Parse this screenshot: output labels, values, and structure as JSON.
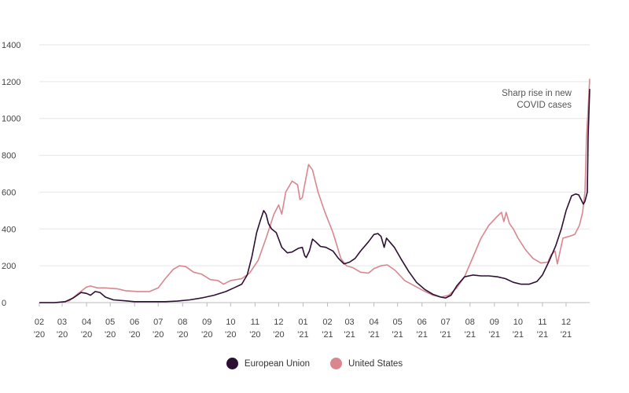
{
  "chart_data": {
    "type": "line",
    "title": "",
    "xlabel": "",
    "ylabel": "",
    "ylim": [
      0,
      1400
    ],
    "yticks": [
      0,
      200,
      400,
      600,
      800,
      1000,
      1200,
      1400
    ],
    "grid": true,
    "legend_position": "bottom-center",
    "x_range": [
      "2020-02-01",
      "2021-12-31"
    ],
    "x_tick_labels": [
      {
        "month": "02",
        "year": "'20"
      },
      {
        "month": "03",
        "year": "'20"
      },
      {
        "month": "04",
        "year": "'20"
      },
      {
        "month": "05",
        "year": "'20"
      },
      {
        "month": "06",
        "year": "'20"
      },
      {
        "month": "07",
        "year": "'20"
      },
      {
        "month": "08",
        "year": "'20"
      },
      {
        "month": "09",
        "year": "'20"
      },
      {
        "month": "10",
        "year": "'20"
      },
      {
        "month": "11",
        "year": "'20"
      },
      {
        "month": "12",
        "year": "'20"
      },
      {
        "month": "01",
        "year": "'21"
      },
      {
        "month": "02",
        "year": "'21"
      },
      {
        "month": "03",
        "year": "'21"
      },
      {
        "month": "04",
        "year": "'21"
      },
      {
        "month": "05",
        "year": "'21"
      },
      {
        "month": "06",
        "year": "'21"
      },
      {
        "month": "07",
        "year": "'21"
      },
      {
        "month": "08",
        "year": "'21"
      },
      {
        "month": "09",
        "year": "'21"
      },
      {
        "month": "10",
        "year": "'21"
      },
      {
        "month": "11",
        "year": "'21"
      },
      {
        "month": "12",
        "year": "'21"
      }
    ],
    "annotation": {
      "lines": [
        "Sharp rise in new",
        "COVID cases"
      ]
    },
    "series": [
      {
        "name": "European Union",
        "color": "#2d0f33",
        "points": [
          [
            "2020-02-01",
            0
          ],
          [
            "2020-02-20",
            0
          ],
          [
            "2020-03-05",
            5
          ],
          [
            "2020-03-15",
            25
          ],
          [
            "2020-03-25",
            55
          ],
          [
            "2020-04-01",
            50
          ],
          [
            "2020-04-06",
            40
          ],
          [
            "2020-04-12",
            60
          ],
          [
            "2020-04-18",
            55
          ],
          [
            "2020-04-25",
            30
          ],
          [
            "2020-05-05",
            15
          ],
          [
            "2020-05-20",
            10
          ],
          [
            "2020-06-01",
            5
          ],
          [
            "2020-06-20",
            5
          ],
          [
            "2020-07-10",
            5
          ],
          [
            "2020-07-25",
            8
          ],
          [
            "2020-08-10",
            15
          ],
          [
            "2020-08-25",
            25
          ],
          [
            "2020-09-10",
            40
          ],
          [
            "2020-09-25",
            60
          ],
          [
            "2020-10-05",
            80
          ],
          [
            "2020-10-15",
            100
          ],
          [
            "2020-10-22",
            150
          ],
          [
            "2020-10-28",
            250
          ],
          [
            "2020-11-03",
            380
          ],
          [
            "2020-11-08",
            450
          ],
          [
            "2020-11-12",
            500
          ],
          [
            "2020-11-15",
            480
          ],
          [
            "2020-11-18",
            430
          ],
          [
            "2020-11-22",
            400
          ],
          [
            "2020-11-28",
            380
          ],
          [
            "2020-12-05",
            300
          ],
          [
            "2020-12-12",
            270
          ],
          [
            "2020-12-18",
            275
          ],
          [
            "2020-12-26",
            295
          ],
          [
            "2020-12-31",
            300
          ],
          [
            "2021-01-03",
            255
          ],
          [
            "2021-01-05",
            245
          ],
          [
            "2021-01-09",
            280
          ],
          [
            "2021-01-13",
            345
          ],
          [
            "2021-01-17",
            330
          ],
          [
            "2021-01-23",
            305
          ],
          [
            "2021-01-30",
            300
          ],
          [
            "2021-02-08",
            280
          ],
          [
            "2021-02-15",
            240
          ],
          [
            "2021-02-22",
            210
          ],
          [
            "2021-03-01",
            220
          ],
          [
            "2021-03-08",
            240
          ],
          [
            "2021-03-15",
            280
          ],
          [
            "2021-03-25",
            330
          ],
          [
            "2021-04-01",
            370
          ],
          [
            "2021-04-06",
            375
          ],
          [
            "2021-04-10",
            360
          ],
          [
            "2021-04-14",
            300
          ],
          [
            "2021-04-17",
            350
          ],
          [
            "2021-04-21",
            330
          ],
          [
            "2021-04-27",
            300
          ],
          [
            "2021-05-05",
            240
          ],
          [
            "2021-05-15",
            170
          ],
          [
            "2021-05-25",
            110
          ],
          [
            "2021-06-05",
            70
          ],
          [
            "2021-06-15",
            45
          ],
          [
            "2021-06-25",
            30
          ],
          [
            "2021-07-01",
            25
          ],
          [
            "2021-07-08",
            40
          ],
          [
            "2021-07-15",
            90
          ],
          [
            "2021-07-25",
            140
          ],
          [
            "2021-08-05",
            150
          ],
          [
            "2021-08-15",
            145
          ],
          [
            "2021-08-25",
            145
          ],
          [
            "2021-09-05",
            140
          ],
          [
            "2021-09-15",
            130
          ],
          [
            "2021-09-25",
            110
          ],
          [
            "2021-10-05",
            100
          ],
          [
            "2021-10-15",
            100
          ],
          [
            "2021-10-25",
            115
          ],
          [
            "2021-11-01",
            150
          ],
          [
            "2021-11-10",
            230
          ],
          [
            "2021-11-18",
            310
          ],
          [
            "2021-11-25",
            400
          ],
          [
            "2021-12-01",
            500
          ],
          [
            "2021-12-08",
            580
          ],
          [
            "2021-12-13",
            590
          ],
          [
            "2021-12-17",
            585
          ],
          [
            "2021-12-20",
            560
          ],
          [
            "2021-12-23",
            535
          ],
          [
            "2021-12-25",
            550
          ],
          [
            "2021-12-28",
            600
          ],
          [
            "2021-12-29",
            900
          ],
          [
            "2021-12-31",
            1160
          ]
        ]
      },
      {
        "name": "United States",
        "color": "#d9868f",
        "points": [
          [
            "2020-02-01",
            0
          ],
          [
            "2020-02-25",
            0
          ],
          [
            "2020-03-10",
            10
          ],
          [
            "2020-03-20",
            45
          ],
          [
            "2020-04-01",
            85
          ],
          [
            "2020-04-06",
            90
          ],
          [
            "2020-04-15",
            80
          ],
          [
            "2020-04-25",
            80
          ],
          [
            "2020-05-10",
            75
          ],
          [
            "2020-05-20",
            65
          ],
          [
            "2020-06-05",
            60
          ],
          [
            "2020-06-20",
            60
          ],
          [
            "2020-07-01",
            80
          ],
          [
            "2020-07-10",
            130
          ],
          [
            "2020-07-20",
            180
          ],
          [
            "2020-07-28",
            200
          ],
          [
            "2020-08-05",
            195
          ],
          [
            "2020-08-15",
            165
          ],
          [
            "2020-08-25",
            155
          ],
          [
            "2020-09-05",
            125
          ],
          [
            "2020-09-15",
            120
          ],
          [
            "2020-09-22",
            100
          ],
          [
            "2020-10-01",
            120
          ],
          [
            "2020-10-15",
            130
          ],
          [
            "2020-10-25",
            160
          ],
          [
            "2020-11-05",
            230
          ],
          [
            "2020-11-15",
            350
          ],
          [
            "2020-11-25",
            480
          ],
          [
            "2020-12-01",
            530
          ],
          [
            "2020-12-05",
            480
          ],
          [
            "2020-12-10",
            600
          ],
          [
            "2020-12-18",
            660
          ],
          [
            "2020-12-25",
            640
          ],
          [
            "2020-12-28",
            560
          ],
          [
            "2020-12-31",
            570
          ],
          [
            "2021-01-03",
            640
          ],
          [
            "2021-01-08",
            750
          ],
          [
            "2021-01-13",
            720
          ],
          [
            "2021-01-20",
            600
          ],
          [
            "2021-01-28",
            500
          ],
          [
            "2021-02-08",
            380
          ],
          [
            "2021-02-18",
            240
          ],
          [
            "2021-02-25",
            200
          ],
          [
            "2021-03-05",
            190
          ],
          [
            "2021-03-15",
            165
          ],
          [
            "2021-03-25",
            160
          ],
          [
            "2021-04-01",
            185
          ],
          [
            "2021-04-10",
            200
          ],
          [
            "2021-04-18",
            205
          ],
          [
            "2021-04-28",
            175
          ],
          [
            "2021-05-10",
            120
          ],
          [
            "2021-05-25",
            85
          ],
          [
            "2021-06-05",
            60
          ],
          [
            "2021-06-15",
            40
          ],
          [
            "2021-06-25",
            30
          ],
          [
            "2021-07-05",
            40
          ],
          [
            "2021-07-15",
            80
          ],
          [
            "2021-07-25",
            140
          ],
          [
            "2021-08-05",
            250
          ],
          [
            "2021-08-15",
            350
          ],
          [
            "2021-08-25",
            420
          ],
          [
            "2021-09-05",
            470
          ],
          [
            "2021-09-10",
            490
          ],
          [
            "2021-09-13",
            440
          ],
          [
            "2021-09-16",
            490
          ],
          [
            "2021-09-20",
            430
          ],
          [
            "2021-09-25",
            400
          ],
          [
            "2021-10-01",
            350
          ],
          [
            "2021-10-10",
            290
          ],
          [
            "2021-10-20",
            240
          ],
          [
            "2021-10-30",
            215
          ],
          [
            "2021-11-08",
            220
          ],
          [
            "2021-11-12",
            260
          ],
          [
            "2021-11-17",
            280
          ],
          [
            "2021-11-20",
            210
          ],
          [
            "2021-11-23",
            270
          ],
          [
            "2021-11-27",
            350
          ],
          [
            "2021-12-05",
            360
          ],
          [
            "2021-12-12",
            370
          ],
          [
            "2021-12-18",
            420
          ],
          [
            "2021-12-22",
            490
          ],
          [
            "2021-12-25",
            600
          ],
          [
            "2021-12-27",
            900
          ],
          [
            "2021-12-29",
            1050
          ],
          [
            "2021-12-31",
            1215
          ]
        ]
      }
    ]
  }
}
